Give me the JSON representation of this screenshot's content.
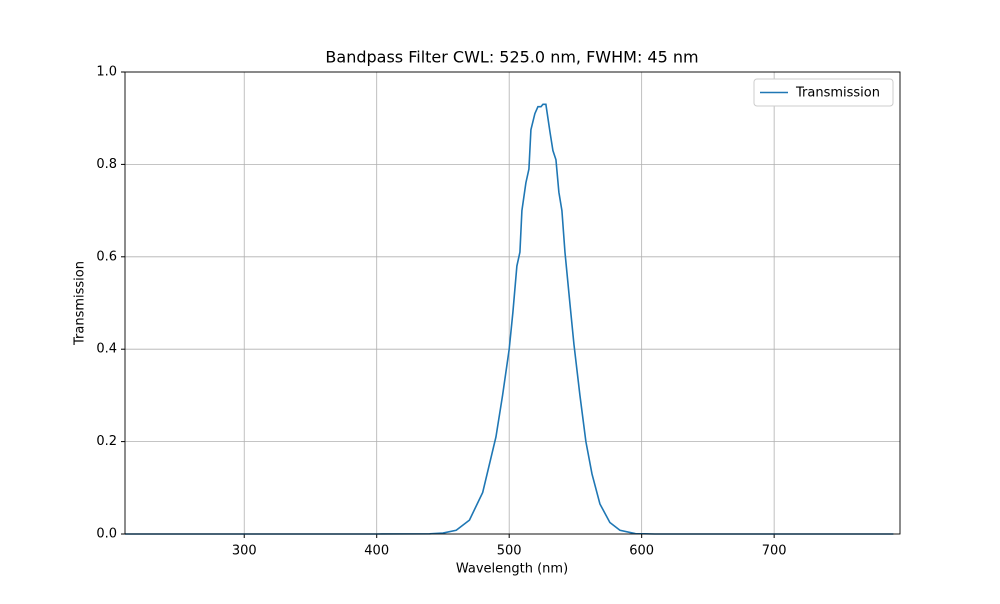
{
  "chart_data": {
    "type": "line",
    "title": "Bandpass Filter CWL: 525.0 nm, FWHM: 45 nm",
    "x_label": "Wavelength (nm)",
    "y_label": "Transmission",
    "x": [
      210,
      300,
      400,
      440,
      450,
      460,
      470,
      480,
      490,
      495,
      500,
      502.8,
      505.8,
      508.1,
      509.6,
      512.6,
      514.9,
      516.4,
      519.4,
      521.7,
      524,
      525.5,
      527.7,
      530.8,
      533,
      535.3,
      537.5,
      539.8,
      542.1,
      545.8,
      548.9,
      553.4,
      557.9,
      562.5,
      568.5,
      576,
      583.6,
      595,
      610,
      700,
      790
    ],
    "series": [
      {
        "name": "Transmission",
        "color": "#1f77b4",
        "values": [
          0,
          0,
          0,
          0.0005,
          0.002,
          0.008,
          0.03,
          0.09,
          0.21,
          0.3,
          0.4,
          0.48,
          0.58,
          0.61,
          0.7,
          0.76,
          0.79,
          0.875,
          0.91,
          0.925,
          0.925,
          0.93,
          0.93,
          0.87,
          0.83,
          0.81,
          0.74,
          0.7,
          0.61,
          0.5,
          0.41,
          0.3,
          0.2,
          0.13,
          0.065,
          0.025,
          0.008,
          0.001,
          0,
          0,
          0
        ]
      }
    ],
    "xlim": [
      210,
      795
    ],
    "ylim": [
      0,
      1
    ],
    "xticks": [
      300,
      400,
      500,
      600,
      700
    ],
    "yticks": [
      {
        "value": 0,
        "label": "0.0"
      },
      {
        "value": 0.2,
        "label": "0.2"
      },
      {
        "value": 0.4,
        "label": "0.4"
      },
      {
        "value": 0.6,
        "label": "0.6"
      },
      {
        "value": 0.8,
        "label": "0.8"
      },
      {
        "value": 1,
        "label": "1.0"
      }
    ],
    "grid": true,
    "legend_position": "upper-right"
  }
}
